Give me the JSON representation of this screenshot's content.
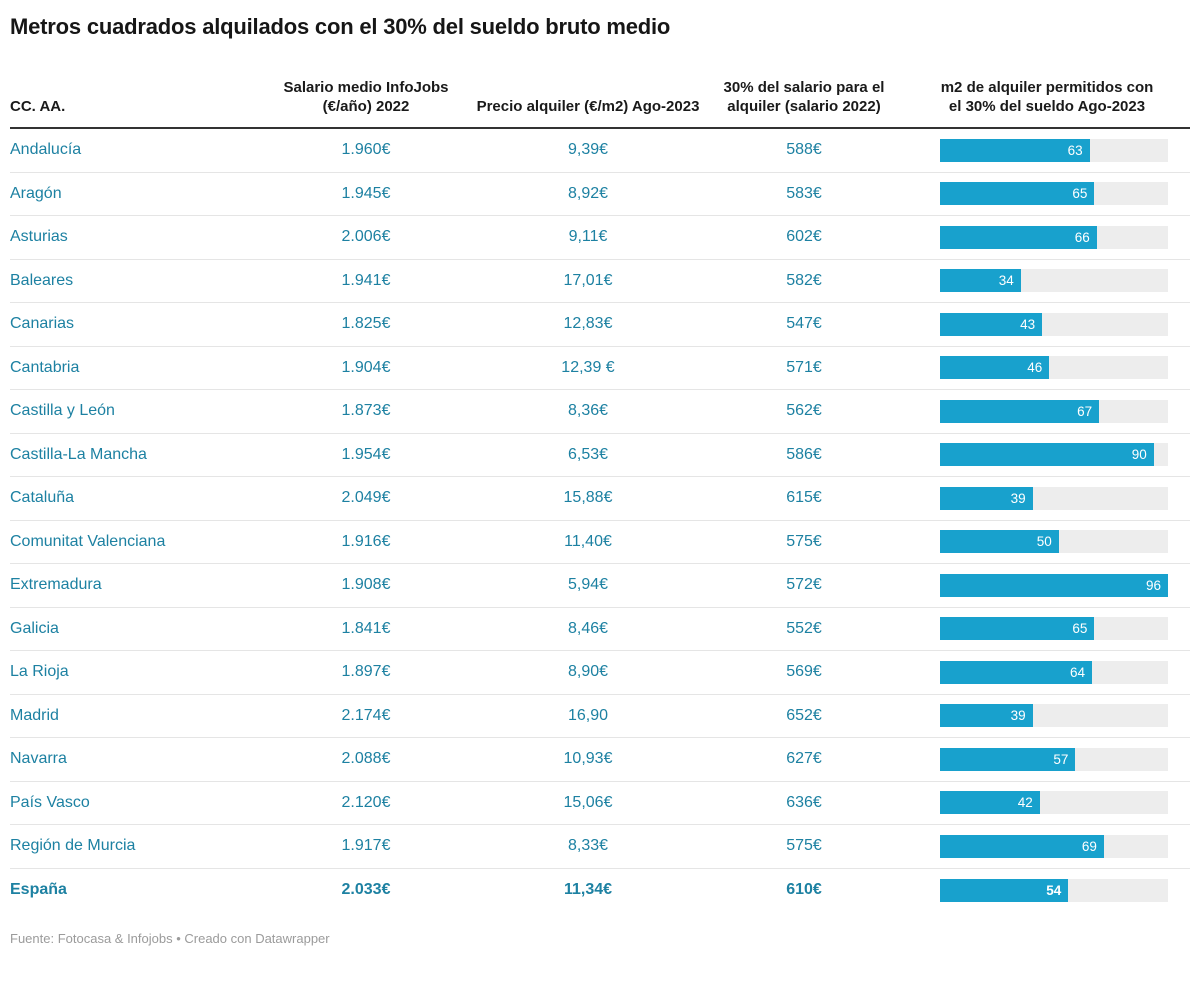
{
  "header": {
    "title": "Metros cuadrados alquilados con el 30% del sueldo bruto medio"
  },
  "colors": {
    "accent_text": "#1d81a2",
    "bar_fill": "#18a1cd",
    "bar_track": "#ededed",
    "bar_label": "#ffffff",
    "header_rule": "#333333"
  },
  "chart_data": {
    "type": "table",
    "title": "Metros cuadrados alquilados con el 30% del sueldo bruto medio",
    "columns": [
      "CC. AA.",
      "Salario medio InfoJobs (€/año) 2022",
      "Precio alquiler (€/m2) Ago-2023",
      "30% del salario para el alquiler (salario 2022)",
      "m2 de alquiler permitidos con el 30% del sueldo Ago-2023"
    ],
    "bar_column": "m2 de alquiler permitidos con el 30% del sueldo Ago-2023",
    "bar_range": [
      0,
      96
    ],
    "bar_value_position": "inside-right",
    "rows": [
      {
        "region": "Andalucía",
        "salario": "1.960€",
        "precio": "9,39€",
        "salario30": "588€",
        "m2": 63,
        "bold": false
      },
      {
        "region": "Aragón",
        "salario": "1.945€",
        "precio": "8,92€",
        "salario30": "583€",
        "m2": 65,
        "bold": false
      },
      {
        "region": "Asturias",
        "salario": "2.006€",
        "precio": "9,11€",
        "salario30": "602€",
        "m2": 66,
        "bold": false
      },
      {
        "region": "Baleares",
        "salario": "1.941€",
        "precio": "17,01€",
        "salario30": "582€",
        "m2": 34,
        "bold": false
      },
      {
        "region": "Canarias",
        "salario": "1.825€",
        "precio": "12,83€",
        "salario30": "547€",
        "m2": 43,
        "bold": false
      },
      {
        "region": "Cantabria",
        "salario": "1.904€",
        "precio": "12,39 €",
        "salario30": "571€",
        "m2": 46,
        "bold": false
      },
      {
        "region": "Castilla y León",
        "salario": "1.873€",
        "precio": "8,36€",
        "salario30": "562€",
        "m2": 67,
        "bold": false
      },
      {
        "region": "Castilla-La Mancha",
        "salario": "1.954€",
        "precio": "6,53€",
        "salario30": "586€",
        "m2": 90,
        "bold": false
      },
      {
        "region": "Cataluña",
        "salario": "2.049€",
        "precio": "15,88€",
        "salario30": "615€",
        "m2": 39,
        "bold": false
      },
      {
        "region": "Comunitat Valenciana",
        "salario": "1.916€",
        "precio": "11,40€",
        "salario30": "575€",
        "m2": 50,
        "bold": false
      },
      {
        "region": "Extremadura",
        "salario": "1.908€",
        "precio": "5,94€",
        "salario30": "572€",
        "m2": 96,
        "bold": false
      },
      {
        "region": "Galicia",
        "salario": "1.841€",
        "precio": "8,46€",
        "salario30": "552€",
        "m2": 65,
        "bold": false
      },
      {
        "region": "La Rioja",
        "salario": "1.897€",
        "precio": "8,90€",
        "salario30": "569€",
        "m2": 64,
        "bold": false
      },
      {
        "region": "Madrid",
        "salario": "2.174€",
        "precio": "16,90",
        "salario30": "652€",
        "m2": 39,
        "bold": false
      },
      {
        "region": "Navarra",
        "salario": "2.088€",
        "precio": "10,93€",
        "salario30": "627€",
        "m2": 57,
        "bold": false
      },
      {
        "region": "País Vasco",
        "salario": "2.120€",
        "precio": "15,06€",
        "salario30": "636€",
        "m2": 42,
        "bold": false
      },
      {
        "region": "Región de Murcia",
        "salario": "1.917€",
        "precio": "8,33€",
        "salario30": "575€",
        "m2": 69,
        "bold": false
      },
      {
        "region": "España",
        "salario": "2.033€",
        "precio": "11,34€",
        "salario30": "610€",
        "m2": 54,
        "bold": true
      }
    ]
  },
  "footer": {
    "source": "Fuente: Fotocasa & Infojobs • Creado con Datawrapper"
  }
}
